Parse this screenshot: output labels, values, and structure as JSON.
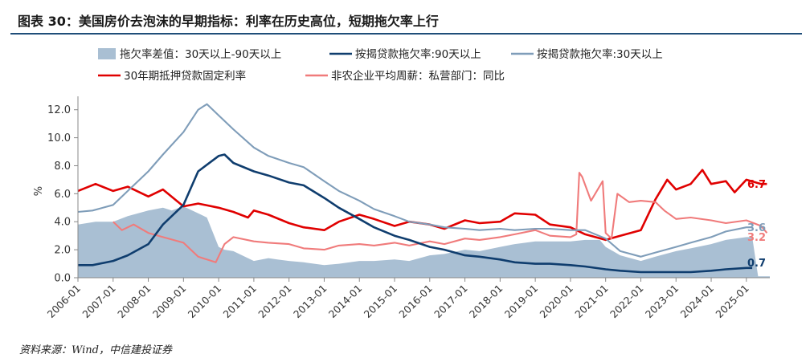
{
  "header": {
    "title": "图表 30：美国房价去泡沫的早期指标：利率在历史高位，短期拖欠率上行"
  },
  "footer": {
    "source": "资料来源：Wind，中信建投证券"
  },
  "chart_data": {
    "type": "line",
    "title": "",
    "xlabel": "",
    "ylabel": "%",
    "ylim": [
      0,
      12.5
    ],
    "x_range": [
      "2006-01",
      "2025-09"
    ],
    "grid": false,
    "legend_position": "top",
    "yticks": [
      "0.0",
      "2.0",
      "4.0",
      "6.0",
      "8.0",
      "10.0",
      "12.0"
    ],
    "xticks": [
      "2006-01",
      "2007-01",
      "2008-01",
      "2009-01",
      "2010-01",
      "2011-01",
      "2012-01",
      "2013-01",
      "2014-01",
      "2015-01",
      "2016-01",
      "2017-01",
      "2018-01",
      "2019-01",
      "2020-01",
      "2021-01",
      "2022-01",
      "2023-01",
      "2024-01",
      "2025-01"
    ],
    "series": [
      {
        "name": "拖欠率差值：30天以上-90天以上",
        "kind": "area",
        "color": "#a9bfd3",
        "points": [
          [
            "2006-01",
            3.8
          ],
          [
            "2006-07",
            4.0
          ],
          [
            "2007-01",
            4.0
          ],
          [
            "2007-06",
            4.4
          ],
          [
            "2008-01",
            4.8
          ],
          [
            "2008-06",
            5.0
          ],
          [
            "2008-09",
            4.8
          ],
          [
            "2009-01",
            5.1
          ],
          [
            "2009-06",
            4.6
          ],
          [
            "2009-09",
            4.3
          ],
          [
            "2010-01",
            2.2
          ],
          [
            "2010-03",
            2.0
          ],
          [
            "2010-06",
            1.9
          ],
          [
            "2010-09",
            1.6
          ],
          [
            "2011-01",
            1.2
          ],
          [
            "2011-06",
            1.4
          ],
          [
            "2011-09",
            1.3
          ],
          [
            "2012-01",
            1.2
          ],
          [
            "2012-06",
            1.1
          ],
          [
            "2013-01",
            0.9
          ],
          [
            "2013-06",
            1.0
          ],
          [
            "2014-01",
            1.2
          ],
          [
            "2014-06",
            1.2
          ],
          [
            "2015-01",
            1.3
          ],
          [
            "2015-06",
            1.2
          ],
          [
            "2016-01",
            1.6
          ],
          [
            "2016-06",
            1.7
          ],
          [
            "2017-01",
            2.0
          ],
          [
            "2017-06",
            1.9
          ],
          [
            "2018-01",
            2.2
          ],
          [
            "2018-06",
            2.4
          ],
          [
            "2019-01",
            2.6
          ],
          [
            "2019-06",
            2.6
          ],
          [
            "2020-01",
            2.6
          ],
          [
            "2020-06",
            2.7
          ],
          [
            "2020-11",
            2.7
          ],
          [
            "2021-01",
            2.2
          ],
          [
            "2021-06",
            1.6
          ],
          [
            "2022-01",
            1.2
          ],
          [
            "2022-06",
            1.5
          ],
          [
            "2023-01",
            1.9
          ],
          [
            "2023-06",
            2.1
          ],
          [
            "2024-01",
            2.4
          ],
          [
            "2024-06",
            2.7
          ],
          [
            "2025-01",
            2.9
          ],
          [
            "2025-03",
            2.9
          ],
          [
            "2025-05",
            0.1
          ],
          [
            "2025-09",
            0.1
          ]
        ]
      },
      {
        "name": "按揭贷款拖欠率:90天以上",
        "kind": "line",
        "color": "#0f3d6e",
        "last_label": "0.7",
        "points": [
          [
            "2006-01",
            0.9
          ],
          [
            "2006-06",
            0.9
          ],
          [
            "2007-01",
            1.2
          ],
          [
            "2007-06",
            1.6
          ],
          [
            "2008-01",
            2.4
          ],
          [
            "2008-06",
            3.8
          ],
          [
            "2009-01",
            5.2
          ],
          [
            "2009-06",
            7.6
          ],
          [
            "2010-01",
            8.7
          ],
          [
            "2010-03",
            8.8
          ],
          [
            "2010-06",
            8.2
          ],
          [
            "2011-01",
            7.6
          ],
          [
            "2011-06",
            7.3
          ],
          [
            "2012-01",
            6.8
          ],
          [
            "2012-06",
            6.6
          ],
          [
            "2013-01",
            5.7
          ],
          [
            "2013-06",
            5.0
          ],
          [
            "2014-01",
            4.2
          ],
          [
            "2014-06",
            3.6
          ],
          [
            "2015-01",
            3.0
          ],
          [
            "2015-06",
            2.7
          ],
          [
            "2016-01",
            2.2
          ],
          [
            "2016-06",
            2.0
          ],
          [
            "2017-01",
            1.6
          ],
          [
            "2017-06",
            1.5
          ],
          [
            "2018-01",
            1.3
          ],
          [
            "2018-06",
            1.1
          ],
          [
            "2019-01",
            1.0
          ],
          [
            "2019-06",
            1.0
          ],
          [
            "2020-01",
            0.9
          ],
          [
            "2020-06",
            0.8
          ],
          [
            "2021-01",
            0.6
          ],
          [
            "2021-06",
            0.5
          ],
          [
            "2022-01",
            0.4
          ],
          [
            "2022-06",
            0.4
          ],
          [
            "2023-01",
            0.4
          ],
          [
            "2023-06",
            0.4
          ],
          [
            "2024-01",
            0.5
          ],
          [
            "2024-06",
            0.6
          ],
          [
            "2025-01",
            0.7
          ],
          [
            "2025-03",
            0.7
          ]
        ]
      },
      {
        "name": "按揭贷款拖欠率:30天以上",
        "kind": "line",
        "color": "#7f9db9",
        "last_label": "3.6",
        "points": [
          [
            "2006-01",
            4.7
          ],
          [
            "2006-06",
            4.8
          ],
          [
            "2007-01",
            5.2
          ],
          [
            "2007-06",
            6.2
          ],
          [
            "2008-01",
            7.6
          ],
          [
            "2008-06",
            8.8
          ],
          [
            "2009-01",
            10.4
          ],
          [
            "2009-06",
            12.0
          ],
          [
            "2009-09",
            12.4
          ],
          [
            "2010-01",
            11.6
          ],
          [
            "2010-06",
            10.6
          ],
          [
            "2011-01",
            9.3
          ],
          [
            "2011-06",
            8.7
          ],
          [
            "2012-01",
            8.2
          ],
          [
            "2012-06",
            7.9
          ],
          [
            "2013-01",
            6.9
          ],
          [
            "2013-06",
            6.2
          ],
          [
            "2014-01",
            5.5
          ],
          [
            "2014-06",
            4.9
          ],
          [
            "2015-01",
            4.4
          ],
          [
            "2015-06",
            4.0
          ],
          [
            "2016-01",
            3.8
          ],
          [
            "2016-06",
            3.6
          ],
          [
            "2017-01",
            3.5
          ],
          [
            "2017-06",
            3.4
          ],
          [
            "2018-01",
            3.5
          ],
          [
            "2018-06",
            3.4
          ],
          [
            "2019-01",
            3.5
          ],
          [
            "2019-06",
            3.5
          ],
          [
            "2020-01",
            3.4
          ],
          [
            "2020-06",
            3.4
          ],
          [
            "2021-01",
            2.8
          ],
          [
            "2021-06",
            1.9
          ],
          [
            "2022-01",
            1.5
          ],
          [
            "2022-06",
            1.8
          ],
          [
            "2023-01",
            2.2
          ],
          [
            "2023-06",
            2.5
          ],
          [
            "2024-01",
            2.9
          ],
          [
            "2024-06",
            3.3
          ],
          [
            "2025-01",
            3.6
          ],
          [
            "2025-03",
            3.6
          ]
        ]
      },
      {
        "name": "30年期抵押贷款固定利率",
        "kind": "line",
        "color": "#e00000",
        "last_label": "6.7",
        "points": [
          [
            "2006-01",
            6.2
          ],
          [
            "2006-07",
            6.7
          ],
          [
            "2007-01",
            6.2
          ],
          [
            "2007-06",
            6.5
          ],
          [
            "2008-01",
            5.8
          ],
          [
            "2008-06",
            6.3
          ],
          [
            "2009-01",
            5.1
          ],
          [
            "2009-06",
            5.3
          ],
          [
            "2010-01",
            5.0
          ],
          [
            "2010-06",
            4.7
          ],
          [
            "2010-11",
            4.3
          ],
          [
            "2011-01",
            4.8
          ],
          [
            "2011-06",
            4.5
          ],
          [
            "2012-01",
            3.9
          ],
          [
            "2012-06",
            3.6
          ],
          [
            "2013-01",
            3.4
          ],
          [
            "2013-06",
            4.0
          ],
          [
            "2014-01",
            4.5
          ],
          [
            "2014-06",
            4.2
          ],
          [
            "2015-01",
            3.7
          ],
          [
            "2015-06",
            4.0
          ],
          [
            "2016-01",
            3.8
          ],
          [
            "2016-06",
            3.5
          ],
          [
            "2017-01",
            4.1
          ],
          [
            "2017-06",
            3.9
          ],
          [
            "2018-01",
            4.0
          ],
          [
            "2018-06",
            4.6
          ],
          [
            "2019-01",
            4.5
          ],
          [
            "2019-06",
            3.8
          ],
          [
            "2020-01",
            3.6
          ],
          [
            "2020-06",
            3.1
          ],
          [
            "2021-01",
            2.7
          ],
          [
            "2021-06",
            3.0
          ],
          [
            "2022-01",
            3.4
          ],
          [
            "2022-06",
            5.6
          ],
          [
            "2022-10",
            7.0
          ],
          [
            "2023-01",
            6.3
          ],
          [
            "2023-06",
            6.7
          ],
          [
            "2023-10",
            7.7
          ],
          [
            "2024-01",
            6.7
          ],
          [
            "2024-06",
            6.9
          ],
          [
            "2024-09",
            6.1
          ],
          [
            "2025-01",
            7.0
          ],
          [
            "2025-06",
            6.7
          ],
          [
            "2025-08",
            6.7
          ]
        ]
      },
      {
        "name": "非农企业平均周薪：私营部门：同比",
        "kind": "line",
        "color": "#f07b7b",
        "last_label": "3.2",
        "points": [
          [
            "2007-01",
            4.0
          ],
          [
            "2007-04",
            3.4
          ],
          [
            "2007-08",
            3.8
          ],
          [
            "2008-01",
            3.2
          ],
          [
            "2008-06",
            2.9
          ],
          [
            "2009-01",
            2.5
          ],
          [
            "2009-06",
            1.5
          ],
          [
            "2009-09",
            1.3
          ],
          [
            "2009-12",
            1.1
          ],
          [
            "2010-03",
            2.4
          ],
          [
            "2010-06",
            2.9
          ],
          [
            "2011-01",
            2.6
          ],
          [
            "2011-06",
            2.5
          ],
          [
            "2012-01",
            2.4
          ],
          [
            "2012-06",
            2.1
          ],
          [
            "2013-01",
            2.0
          ],
          [
            "2013-06",
            2.3
          ],
          [
            "2014-01",
            2.4
          ],
          [
            "2014-06",
            2.3
          ],
          [
            "2015-01",
            2.5
          ],
          [
            "2015-06",
            2.3
          ],
          [
            "2016-01",
            2.6
          ],
          [
            "2016-06",
            2.4
          ],
          [
            "2017-01",
            2.8
          ],
          [
            "2017-06",
            2.7
          ],
          [
            "2018-01",
            2.9
          ],
          [
            "2018-06",
            3.1
          ],
          [
            "2019-01",
            3.4
          ],
          [
            "2019-06",
            3.0
          ],
          [
            "2020-01",
            2.9
          ],
          [
            "2020-03",
            3.1
          ],
          [
            "2020-04",
            7.5
          ],
          [
            "2020-05",
            7.2
          ],
          [
            "2020-08",
            5.5
          ],
          [
            "2020-12",
            6.9
          ],
          [
            "2021-01",
            3.2
          ],
          [
            "2021-03",
            2.8
          ],
          [
            "2021-05",
            6.0
          ],
          [
            "2021-09",
            5.4
          ],
          [
            "2022-01",
            5.5
          ],
          [
            "2022-06",
            5.4
          ],
          [
            "2022-09",
            4.8
          ],
          [
            "2023-01",
            4.2
          ],
          [
            "2023-06",
            4.3
          ],
          [
            "2024-01",
            4.1
          ],
          [
            "2024-06",
            3.9
          ],
          [
            "2025-01",
            4.1
          ],
          [
            "2025-06",
            3.7
          ],
          [
            "2025-08",
            3.2
          ]
        ]
      }
    ]
  }
}
